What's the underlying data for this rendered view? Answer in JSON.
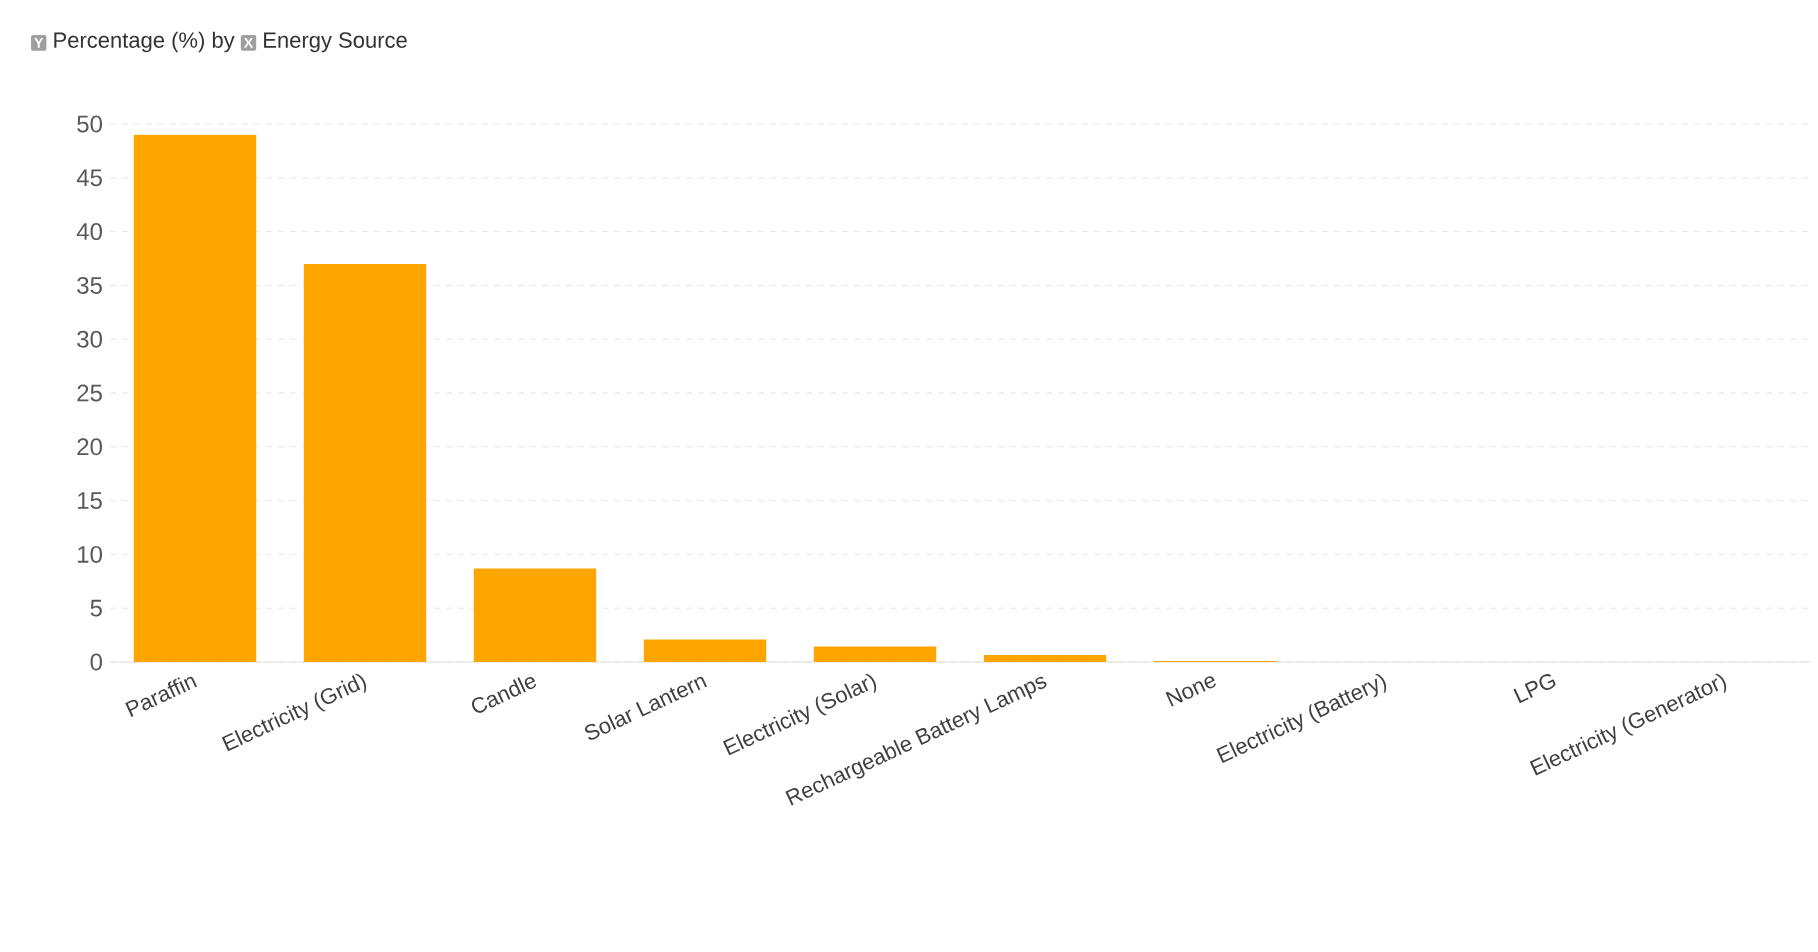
{
  "chart_data": {
    "type": "bar",
    "title": "by",
    "ylabel": "Percentage (%)",
    "xlabel": "Energy Source",
    "annotations": [
      "Y",
      "X"
    ],
    "categories": [
      "Paraffin",
      "Electricity (Grid)",
      "Candle",
      "Solar Lantern",
      "Electricity (Solar)",
      "Rechargeable Battery Lamps",
      "None",
      "Electricity (Battery)",
      "LPG",
      "Electricity (Generator)"
    ],
    "values": [
      49,
      37,
      8.7,
      2.1,
      1.45,
      0.65,
      0.1,
      0,
      0,
      0
    ],
    "color": "#ffa500",
    "ylim": [
      0,
      50
    ],
    "yticks": [
      0,
      5,
      10,
      15,
      20,
      25,
      30,
      35,
      40,
      45,
      50
    ],
    "grid": "y"
  }
}
